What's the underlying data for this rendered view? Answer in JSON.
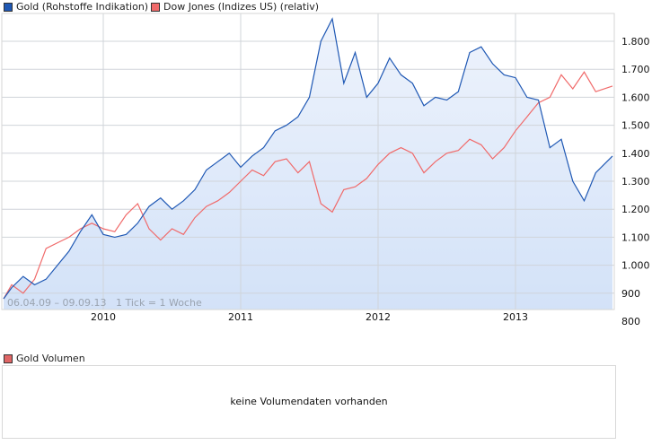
{
  "legend": {
    "gold": {
      "label": "Gold (Rohstoffe Indikation)",
      "color": "#1f58b4"
    },
    "dow": {
      "label": "Dow Jones (Indizes US) (relativ)",
      "color": "#f06a6a"
    }
  },
  "footnote": {
    "range": "06.04.09 – 09.09.13",
    "tick": "1 Tick = 1 Woche"
  },
  "volume": {
    "legend_label": "Gold Volumen",
    "legend_color": "#e06666",
    "message": "keine Volumendaten vorhanden"
  },
  "chart_data": {
    "type": "line",
    "title": "",
    "xlabel": "",
    "ylabel": "",
    "ylim": [
      760,
      1900
    ],
    "x_range": [
      "06.04.09",
      "09.09.13"
    ],
    "x_tick_labels": [
      "2010",
      "2011",
      "2012",
      "2013"
    ],
    "y_tick_labels": [
      "800",
      "900",
      "1.000",
      "1.100",
      "1.200",
      "1.300",
      "1.400",
      "1.500",
      "1.600",
      "1.700",
      "1.800"
    ],
    "y_ticks": [
      800,
      900,
      1000,
      1100,
      1200,
      1300,
      1400,
      1500,
      1600,
      1700,
      1800
    ],
    "grid": true,
    "legend_position": "top-left",
    "tick_interval": "1 week",
    "series": [
      {
        "name": "Gold (Rohstoffe Indikation)",
        "color": "#1f58b4",
        "fill": true,
        "points": [
          [
            "2009-04",
            880
          ],
          [
            "2009-05",
            920
          ],
          [
            "2009-06",
            960
          ],
          [
            "2009-07",
            930
          ],
          [
            "2009-08",
            950
          ],
          [
            "2009-09",
            1000
          ],
          [
            "2009-10",
            1050
          ],
          [
            "2009-11",
            1120
          ],
          [
            "2009-12",
            1180
          ],
          [
            "2010-01",
            1110
          ],
          [
            "2010-02",
            1100
          ],
          [
            "2010-03",
            1110
          ],
          [
            "2010-04",
            1150
          ],
          [
            "2010-05",
            1210
          ],
          [
            "2010-06",
            1240
          ],
          [
            "2010-07",
            1200
          ],
          [
            "2010-08",
            1230
          ],
          [
            "2010-09",
            1270
          ],
          [
            "2010-10",
            1340
          ],
          [
            "2010-11",
            1370
          ],
          [
            "2010-12",
            1400
          ],
          [
            "2011-01",
            1350
          ],
          [
            "2011-02",
            1390
          ],
          [
            "2011-03",
            1420
          ],
          [
            "2011-04",
            1480
          ],
          [
            "2011-05",
            1500
          ],
          [
            "2011-06",
            1530
          ],
          [
            "2011-07",
            1600
          ],
          [
            "2011-08",
            1800
          ],
          [
            "2011-09",
            1880
          ],
          [
            "2011-10",
            1650
          ],
          [
            "2011-11",
            1760
          ],
          [
            "2011-12",
            1600
          ],
          [
            "2012-01",
            1650
          ],
          [
            "2012-02",
            1740
          ],
          [
            "2012-03",
            1680
          ],
          [
            "2012-04",
            1650
          ],
          [
            "2012-05",
            1570
          ],
          [
            "2012-06",
            1600
          ],
          [
            "2012-07",
            1590
          ],
          [
            "2012-08",
            1620
          ],
          [
            "2012-09",
            1760
          ],
          [
            "2012-10",
            1780
          ],
          [
            "2012-11",
            1720
          ],
          [
            "2012-12",
            1680
          ],
          [
            "2013-01",
            1670
          ],
          [
            "2013-02",
            1600
          ],
          [
            "2013-03",
            1590
          ],
          [
            "2013-04",
            1420
          ],
          [
            "2013-05",
            1450
          ],
          [
            "2013-06",
            1300
          ],
          [
            "2013-07",
            1230
          ],
          [
            "2013-08",
            1330
          ],
          [
            "2013-09",
            1390
          ]
        ]
      },
      {
        "name": "Dow Jones (Indizes US) (relativ)",
        "color": "#f06a6a",
        "fill": false,
        "points": [
          [
            "2009-04",
            880
          ],
          [
            "2009-05",
            930
          ],
          [
            "2009-06",
            900
          ],
          [
            "2009-07",
            950
          ],
          [
            "2009-08",
            1060
          ],
          [
            "2009-09",
            1080
          ],
          [
            "2009-10",
            1100
          ],
          [
            "2009-11",
            1130
          ],
          [
            "2009-12",
            1150
          ],
          [
            "2010-01",
            1130
          ],
          [
            "2010-02",
            1120
          ],
          [
            "2010-03",
            1180
          ],
          [
            "2010-04",
            1220
          ],
          [
            "2010-05",
            1130
          ],
          [
            "2010-06",
            1090
          ],
          [
            "2010-07",
            1130
          ],
          [
            "2010-08",
            1110
          ],
          [
            "2010-09",
            1170
          ],
          [
            "2010-10",
            1210
          ],
          [
            "2010-11",
            1230
          ],
          [
            "2010-12",
            1260
          ],
          [
            "2011-01",
            1300
          ],
          [
            "2011-02",
            1340
          ],
          [
            "2011-03",
            1320
          ],
          [
            "2011-04",
            1370
          ],
          [
            "2011-05",
            1380
          ],
          [
            "2011-06",
            1330
          ],
          [
            "2011-07",
            1370
          ],
          [
            "2011-08",
            1220
          ],
          [
            "2011-09",
            1190
          ],
          [
            "2011-10",
            1270
          ],
          [
            "2011-11",
            1280
          ],
          [
            "2011-12",
            1310
          ],
          [
            "2012-01",
            1360
          ],
          [
            "2012-02",
            1400
          ],
          [
            "2012-03",
            1420
          ],
          [
            "2012-04",
            1400
          ],
          [
            "2012-05",
            1330
          ],
          [
            "2012-06",
            1370
          ],
          [
            "2012-07",
            1400
          ],
          [
            "2012-08",
            1410
          ],
          [
            "2012-09",
            1450
          ],
          [
            "2012-10",
            1430
          ],
          [
            "2012-11",
            1380
          ],
          [
            "2012-12",
            1420
          ],
          [
            "2013-01",
            1480
          ],
          [
            "2013-02",
            1530
          ],
          [
            "2013-03",
            1580
          ],
          [
            "2013-04",
            1600
          ],
          [
            "2013-05",
            1680
          ],
          [
            "2013-06",
            1630
          ],
          [
            "2013-07",
            1690
          ],
          [
            "2013-08",
            1620
          ],
          [
            "2013-09",
            1640
          ]
        ]
      }
    ]
  }
}
